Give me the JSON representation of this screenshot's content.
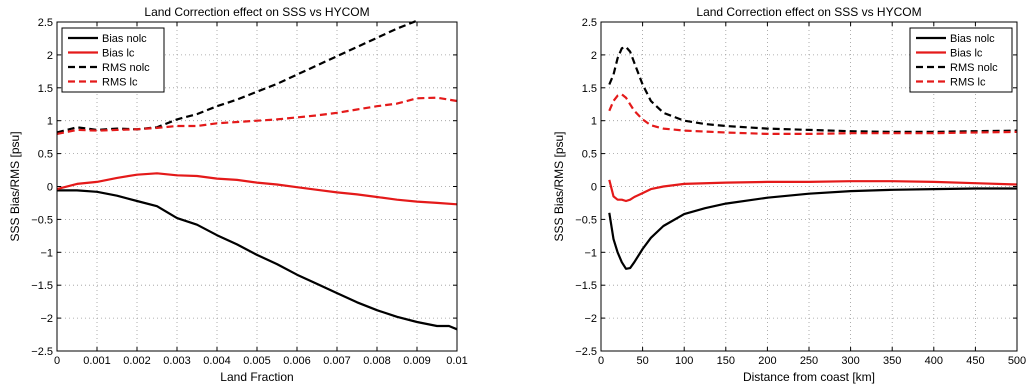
{
  "chart_data": [
    {
      "type": "line",
      "title": "Land Correction effect on SSS vs HYCOM",
      "xlabel": "Land Fraction",
      "ylabel": "SSS Bias/RMS [psu]",
      "xlim": [
        0,
        0.01
      ],
      "ylim": [
        -2.5,
        2.5
      ],
      "xticks": [
        0,
        0.001,
        0.002,
        0.003,
        0.004,
        0.005,
        0.006,
        0.007,
        0.008,
        0.009,
        0.01
      ],
      "xtick_labels": [
        "0",
        "0.001",
        "0.002",
        "0.003",
        "0.004",
        "0.005",
        "0.006",
        "0.007",
        "0.008",
        "0.009",
        "0.01"
      ],
      "yticks": [
        -2.5,
        -2,
        -1.5,
        -1,
        -0.5,
        0,
        0.5,
        1,
        1.5,
        2,
        2.5
      ],
      "ytick_labels": [
        "−2.5",
        "−2",
        "−1.5",
        "−1",
        "−0.5",
        "0",
        "0.5",
        "1",
        "1.5",
        "2",
        "2.5"
      ],
      "grid": true,
      "legend_position": "top-left",
      "series": [
        {
          "name": "Bias nolc",
          "color": "#000000",
          "dash": "solid",
          "x": [
            0,
            0.0005,
            0.001,
            0.0015,
            0.002,
            0.0025,
            0.003,
            0.0035,
            0.004,
            0.0045,
            0.005,
            0.0055,
            0.006,
            0.0065,
            0.007,
            0.0075,
            0.008,
            0.0085,
            0.009,
            0.0095,
            0.0098,
            0.01
          ],
          "y": [
            -0.06,
            -0.06,
            -0.08,
            -0.14,
            -0.22,
            -0.3,
            -0.48,
            -0.58,
            -0.74,
            -0.88,
            -1.04,
            -1.18,
            -1.34,
            -1.48,
            -1.62,
            -1.76,
            -1.88,
            -1.98,
            -2.06,
            -2.12,
            -2.12,
            -2.17
          ]
        },
        {
          "name": "Bias lc",
          "color": "#e41a1a",
          "dash": "solid",
          "x": [
            0,
            0.0005,
            0.001,
            0.0015,
            0.002,
            0.0025,
            0.003,
            0.0035,
            0.004,
            0.0045,
            0.005,
            0.0055,
            0.006,
            0.0065,
            0.007,
            0.0075,
            0.008,
            0.0085,
            0.009,
            0.0095,
            0.01
          ],
          "y": [
            -0.04,
            0.04,
            0.07,
            0.13,
            0.18,
            0.2,
            0.17,
            0.16,
            0.12,
            0.1,
            0.06,
            0.03,
            -0.01,
            -0.05,
            -0.09,
            -0.12,
            -0.16,
            -0.2,
            -0.23,
            -0.25,
            -0.27
          ]
        },
        {
          "name": "RMS nolc",
          "color": "#000000",
          "dash": "dashed",
          "x": [
            0,
            0.0005,
            0.001,
            0.0015,
            0.002,
            0.0025,
            0.003,
            0.0035,
            0.004,
            0.0045,
            0.005,
            0.0055,
            0.006,
            0.0065,
            0.007,
            0.0075,
            0.008,
            0.0085,
            0.009
          ],
          "y": [
            0.82,
            0.9,
            0.86,
            0.88,
            0.87,
            0.9,
            1.02,
            1.1,
            1.22,
            1.32,
            1.44,
            1.56,
            1.7,
            1.84,
            1.98,
            2.12,
            2.26,
            2.4,
            2.52
          ]
        },
        {
          "name": "RMS lc",
          "color": "#e41a1a",
          "dash": "dashed",
          "x": [
            0,
            0.0005,
            0.001,
            0.0015,
            0.002,
            0.0025,
            0.003,
            0.0035,
            0.004,
            0.0045,
            0.005,
            0.0055,
            0.006,
            0.0065,
            0.007,
            0.0075,
            0.008,
            0.0085,
            0.009,
            0.0095,
            0.01
          ],
          "y": [
            0.8,
            0.86,
            0.85,
            0.86,
            0.87,
            0.89,
            0.92,
            0.92,
            0.96,
            0.98,
            1.0,
            1.02,
            1.05,
            1.08,
            1.12,
            1.17,
            1.22,
            1.26,
            1.34,
            1.35,
            1.3
          ]
        }
      ]
    },
    {
      "type": "line",
      "title": "Land Correction effect on SSS vs HYCOM",
      "xlabel": "Distance from coast [km]",
      "ylabel": "SSS Bias/RMS [psu]",
      "xlim": [
        0,
        500
      ],
      "ylim": [
        -2.5,
        2.5
      ],
      "xticks": [
        0,
        50,
        100,
        150,
        200,
        250,
        300,
        350,
        400,
        450,
        500
      ],
      "xtick_labels": [
        "0",
        "50",
        "100",
        "150",
        "200",
        "250",
        "300",
        "350",
        "400",
        "450",
        "500"
      ],
      "yticks": [
        -2.5,
        -2,
        -1.5,
        -1,
        -0.5,
        0,
        0.5,
        1,
        1.5,
        2,
        2.5
      ],
      "ytick_labels": [
        "−2.5",
        "−2",
        "−1.5",
        "−1",
        "−0.5",
        "0",
        "0.5",
        "1",
        "1.5",
        "2",
        "2.5"
      ],
      "grid": true,
      "legend_position": "top-right",
      "series": [
        {
          "name": "Bias nolc",
          "color": "#000000",
          "dash": "solid",
          "x": [
            10,
            15,
            20,
            25,
            30,
            35,
            40,
            50,
            60,
            75,
            100,
            125,
            150,
            200,
            250,
            300,
            350,
            400,
            450,
            500
          ],
          "y": [
            -0.4,
            -0.8,
            -1.0,
            -1.15,
            -1.25,
            -1.24,
            -1.15,
            -0.95,
            -0.78,
            -0.6,
            -0.42,
            -0.33,
            -0.26,
            -0.17,
            -0.11,
            -0.07,
            -0.05,
            -0.04,
            -0.03,
            -0.03
          ]
        },
        {
          "name": "Bias lc",
          "color": "#e41a1a",
          "dash": "solid",
          "x": [
            10,
            15,
            20,
            25,
            30,
            35,
            40,
            50,
            60,
            75,
            100,
            150,
            200,
            250,
            300,
            350,
            400,
            450,
            500
          ],
          "y": [
            0.1,
            -0.15,
            -0.2,
            -0.2,
            -0.22,
            -0.2,
            -0.16,
            -0.1,
            -0.04,
            0.0,
            0.04,
            0.06,
            0.07,
            0.07,
            0.08,
            0.08,
            0.07,
            0.05,
            0.03
          ]
        },
        {
          "name": "RMS nolc",
          "color": "#000000",
          "dash": "dashed",
          "x": [
            10,
            15,
            20,
            25,
            30,
            35,
            40,
            50,
            60,
            75,
            100,
            125,
            150,
            200,
            250,
            300,
            350,
            400,
            450,
            500
          ],
          "y": [
            1.55,
            1.7,
            1.95,
            2.1,
            2.12,
            2.05,
            1.88,
            1.55,
            1.3,
            1.12,
            1.0,
            0.95,
            0.92,
            0.88,
            0.86,
            0.84,
            0.83,
            0.83,
            0.84,
            0.85
          ]
        },
        {
          "name": "RMS lc",
          "color": "#e41a1a",
          "dash": "dashed",
          "x": [
            10,
            15,
            20,
            25,
            30,
            35,
            40,
            50,
            60,
            75,
            100,
            150,
            200,
            250,
            300,
            350,
            400,
            450,
            500
          ],
          "y": [
            1.15,
            1.3,
            1.38,
            1.4,
            1.35,
            1.25,
            1.15,
            1.02,
            0.93,
            0.88,
            0.85,
            0.82,
            0.8,
            0.8,
            0.81,
            0.81,
            0.81,
            0.82,
            0.83
          ]
        }
      ]
    }
  ]
}
